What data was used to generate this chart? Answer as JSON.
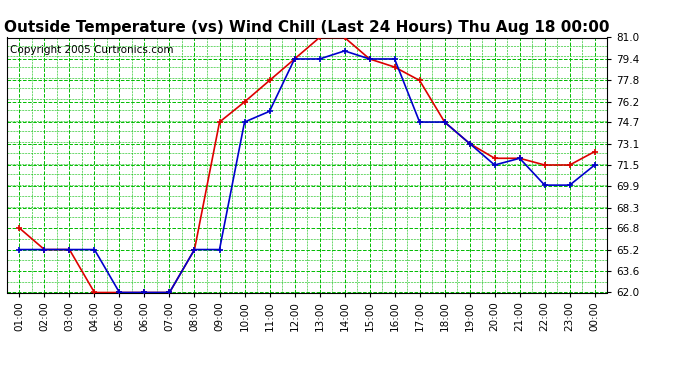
{
  "title": "Outside Temperature (vs) Wind Chill (Last 24 Hours) Thu Aug 18 00:00",
  "copyright": "Copyright 2005 Curtronics.com",
  "x_labels": [
    "01:00",
    "02:00",
    "03:00",
    "04:00",
    "05:00",
    "06:00",
    "07:00",
    "08:00",
    "09:00",
    "10:00",
    "11:00",
    "12:00",
    "13:00",
    "14:00",
    "15:00",
    "16:00",
    "17:00",
    "18:00",
    "19:00",
    "20:00",
    "21:00",
    "22:00",
    "23:00",
    "00:00"
  ],
  "temp_red": [
    66.8,
    65.2,
    65.2,
    62.0,
    62.0,
    62.0,
    62.0,
    65.2,
    74.7,
    76.2,
    77.8,
    79.4,
    81.0,
    81.0,
    79.4,
    78.8,
    77.8,
    74.7,
    73.1,
    72.0,
    72.0,
    71.5,
    71.5,
    72.5
  ],
  "temp_blue": [
    65.2,
    65.2,
    65.2,
    65.2,
    62.0,
    62.0,
    62.0,
    65.2,
    65.2,
    74.7,
    75.5,
    79.4,
    79.4,
    80.0,
    79.4,
    79.4,
    74.7,
    74.7,
    73.1,
    71.5,
    72.0,
    70.0,
    70.0,
    71.5
  ],
  "ylim_min": 62.0,
  "ylim_max": 81.0,
  "yticks": [
    62.0,
    63.6,
    65.2,
    66.8,
    68.3,
    69.9,
    71.5,
    73.1,
    74.7,
    76.2,
    77.8,
    79.4,
    81.0
  ],
  "bg_color": "#ffffff",
  "plot_bg": "#ffffff",
  "grid_color": "#00bb00",
  "line_color_red": "#dd0000",
  "line_color_blue": "#0000cc",
  "title_fontsize": 11,
  "copyright_fontsize": 7.5,
  "marker_size": 4,
  "linewidth": 1.2
}
